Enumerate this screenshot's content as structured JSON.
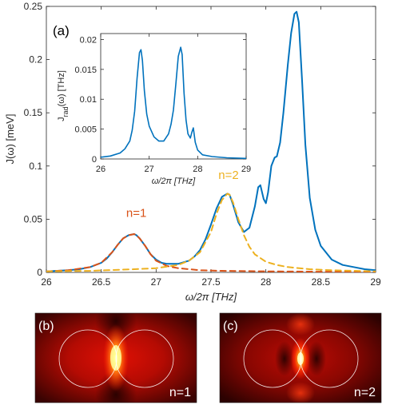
{
  "chart_data": {
    "type": "line",
    "panel_a": {
      "label": "(a)",
      "xlabel": "ω/2π [THz]",
      "ylabel": "J(ω) [meV]",
      "xlim": [
        26,
        29
      ],
      "ylim": [
        0,
        0.25
      ],
      "xticks": [
        "26",
        "26.5",
        "27",
        "27.5",
        "28",
        "28.5",
        "29"
      ],
      "yticks": [
        "0",
        "0.05",
        "0.1",
        "0.15",
        "0.2",
        "0.25"
      ],
      "grid": false,
      "annotations": [
        {
          "text": "n=1",
          "x": 26.82,
          "y": 0.052,
          "color": "#d95319"
        },
        {
          "text": "n=2",
          "x": 27.66,
          "y": 0.088,
          "color": "#edb120"
        }
      ],
      "series": [
        {
          "color": "#0072bd",
          "style": "solid",
          "x": [
            26.0,
            26.1,
            26.2,
            26.3,
            26.4,
            26.5,
            26.55,
            26.6,
            26.65,
            26.7,
            26.75,
            26.8,
            26.82,
            26.85,
            26.9,
            26.95,
            27.0,
            27.05,
            27.1,
            27.2,
            27.3,
            27.35,
            27.4,
            27.45,
            27.5,
            27.55,
            27.6,
            27.65,
            27.67,
            27.7,
            27.75,
            27.8,
            27.85,
            27.9,
            27.93,
            27.95,
            27.98,
            28.0,
            28.02,
            28.05,
            28.08,
            28.1,
            28.13,
            28.16,
            28.2,
            28.23,
            28.26,
            28.28,
            28.3,
            28.33,
            28.36,
            28.4,
            28.45,
            28.5,
            28.6,
            28.7,
            28.8,
            28.9,
            29.0
          ],
          "y": [
            0.001,
            0.0015,
            0.002,
            0.003,
            0.005,
            0.009,
            0.013,
            0.019,
            0.026,
            0.032,
            0.035,
            0.036,
            0.035,
            0.032,
            0.025,
            0.017,
            0.012,
            0.009,
            0.008,
            0.008,
            0.011,
            0.015,
            0.021,
            0.031,
            0.045,
            0.06,
            0.071,
            0.074,
            0.073,
            0.064,
            0.047,
            0.038,
            0.042,
            0.062,
            0.08,
            0.082,
            0.069,
            0.065,
            0.075,
            0.1,
            0.108,
            0.109,
            0.122,
            0.15,
            0.195,
            0.225,
            0.243,
            0.245,
            0.235,
            0.18,
            0.12,
            0.07,
            0.04,
            0.025,
            0.012,
            0.007,
            0.005,
            0.003,
            0.002
          ]
        },
        {
          "color": "#d95319",
          "style": "dashed",
          "x": [
            26.0,
            26.2,
            26.4,
            26.5,
            26.6,
            26.65,
            26.7,
            26.75,
            26.8,
            26.82,
            26.85,
            26.9,
            26.95,
            27.0,
            27.1,
            27.2,
            27.4,
            27.6,
            28.0,
            28.5,
            29.0
          ],
          "y": [
            0.001,
            0.002,
            0.005,
            0.009,
            0.019,
            0.026,
            0.032,
            0.035,
            0.036,
            0.035,
            0.032,
            0.025,
            0.017,
            0.011,
            0.006,
            0.004,
            0.002,
            0.0015,
            0.001,
            0.0007,
            0.0005
          ]
        },
        {
          "color": "#edb120",
          "style": "dashed",
          "x": [
            26.0,
            26.4,
            26.8,
            27.0,
            27.2,
            27.3,
            27.4,
            27.5,
            27.55,
            27.6,
            27.65,
            27.67,
            27.7,
            27.75,
            27.8,
            27.85,
            27.9,
            28.0,
            28.1,
            28.2,
            28.4,
            28.6,
            29.0
          ],
          "y": [
            0.001,
            0.0015,
            0.003,
            0.004,
            0.007,
            0.011,
            0.019,
            0.038,
            0.055,
            0.068,
            0.074,
            0.073,
            0.066,
            0.05,
            0.035,
            0.024,
            0.017,
            0.01,
            0.007,
            0.005,
            0.003,
            0.002,
            0.001
          ]
        }
      ]
    },
    "inset": {
      "xlabel": "ω/2π [THz]",
      "ylabel": "J_rad(ω) [THz]",
      "xlim": [
        26,
        29
      ],
      "ylim": [
        0,
        0.021
      ],
      "xticks": [
        "26",
        "27",
        "28",
        "29"
      ],
      "yticks": [
        "0",
        "0.005",
        "0.01",
        "0.015",
        "0.02"
      ],
      "series": [
        {
          "color": "#0072bd",
          "style": "solid",
          "x": [
            26.0,
            26.2,
            26.4,
            26.5,
            26.6,
            26.65,
            26.7,
            26.75,
            26.8,
            26.83,
            26.86,
            26.9,
            26.95,
            27.0,
            27.1,
            27.2,
            27.3,
            27.4,
            27.45,
            27.5,
            27.55,
            27.6,
            27.65,
            27.68,
            27.72,
            27.76,
            27.8,
            27.85,
            27.88,
            27.91,
            27.95,
            28.0,
            28.1,
            28.3,
            28.6,
            29.0
          ],
          "y": [
            0.0003,
            0.0005,
            0.001,
            0.0017,
            0.003,
            0.0048,
            0.008,
            0.0135,
            0.0178,
            0.0183,
            0.0165,
            0.0115,
            0.0075,
            0.0055,
            0.0037,
            0.003,
            0.003,
            0.0042,
            0.0058,
            0.0082,
            0.0125,
            0.0172,
            0.0187,
            0.0175,
            0.011,
            0.0065,
            0.0042,
            0.0035,
            0.0045,
            0.0052,
            0.0028,
            0.0015,
            0.0007,
            0.0004,
            0.0002,
            0.0001
          ]
        }
      ]
    },
    "field_panels": [
      {
        "label": "(b)",
        "mode": "n=1"
      },
      {
        "label": "(c)",
        "mode": "n=2"
      }
    ]
  }
}
